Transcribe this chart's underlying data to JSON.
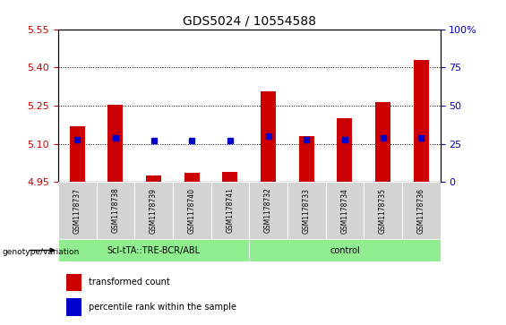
{
  "title": "GDS5024 / 10554588",
  "samples": [
    "GSM1178737",
    "GSM1178738",
    "GSM1178739",
    "GSM1178740",
    "GSM1178741",
    "GSM1178732",
    "GSM1178733",
    "GSM1178734",
    "GSM1178735",
    "GSM1178736"
  ],
  "groups": [
    "Scl-tTA::TRE-BCR/ABL",
    "Scl-tTA::TRE-BCR/ABL",
    "Scl-tTA::TRE-BCR/ABL",
    "Scl-tTA::TRE-BCR/ABL",
    "Scl-tTA::TRE-BCR/ABL",
    "control",
    "control",
    "control",
    "control",
    "control"
  ],
  "group_labels": [
    "Scl-tTA::TRE-BCR/ABL",
    "control"
  ],
  "group_color": "#90EE90",
  "transformed_count": [
    5.17,
    5.255,
    4.975,
    4.985,
    4.99,
    5.305,
    5.13,
    5.2,
    5.265,
    5.43
  ],
  "percentile_rank": [
    28,
    29,
    27,
    27,
    27,
    30,
    28,
    28,
    29,
    29
  ],
  "ylim_left": [
    4.95,
    5.55
  ],
  "ylim_right": [
    0,
    100
  ],
  "yticks_left": [
    4.95,
    5.1,
    5.25,
    5.4,
    5.55
  ],
  "yticks_right": [
    0,
    25,
    50,
    75,
    100
  ],
  "bar_color": "#CC0000",
  "dot_color": "#0000CC",
  "bar_width": 0.4,
  "bg_color": "#FFFFFF",
  "left_tick_color": "#CC0000",
  "right_tick_color": "#0000CC",
  "legend_items": [
    "transformed count",
    "percentile rank within the sample"
  ],
  "legend_colors": [
    "#CC0000",
    "#0000CC"
  ],
  "sample_cell_color": "#D3D3D3"
}
